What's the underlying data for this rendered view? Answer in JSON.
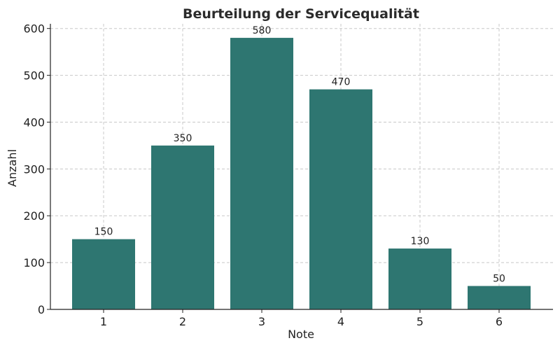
{
  "chart_data": {
    "type": "bar",
    "title": "Beurteilung der Servicequalität",
    "xlabel": "Note",
    "ylabel": "Anzahl",
    "categories": [
      "1",
      "2",
      "3",
      "4",
      "5",
      "6"
    ],
    "values": [
      150,
      350,
      580,
      470,
      130,
      50
    ],
    "data_labels": [
      "150",
      "350",
      "580",
      "470",
      "130",
      "50"
    ],
    "ylim": [
      0,
      610
    ],
    "yticks": [
      0,
      100,
      200,
      300,
      400,
      500,
      600
    ],
    "ytick_labels": [
      "0",
      "100",
      "200",
      "300",
      "400",
      "500",
      "600"
    ],
    "grid": true,
    "bar_color": "#2e7671"
  }
}
